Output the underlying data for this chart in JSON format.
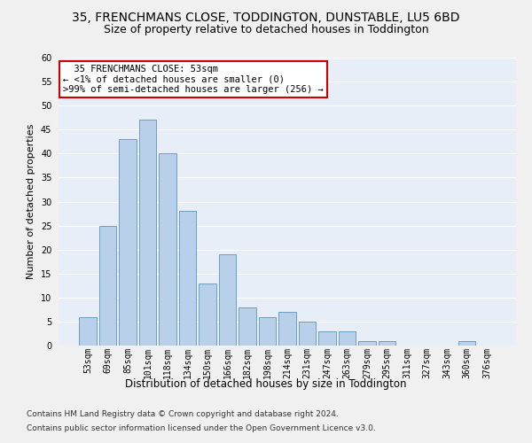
{
  "title": "35, FRENCHMANS CLOSE, TODDINGTON, DUNSTABLE, LU5 6BD",
  "subtitle": "Size of property relative to detached houses in Toddington",
  "xlabel": "Distribution of detached houses by size in Toddington",
  "ylabel": "Number of detached properties",
  "categories": [
    "53sqm",
    "69sqm",
    "85sqm",
    "101sqm",
    "118sqm",
    "134sqm",
    "150sqm",
    "166sqm",
    "182sqm",
    "198sqm",
    "214sqm",
    "231sqm",
    "247sqm",
    "263sqm",
    "279sqm",
    "295sqm",
    "311sqm",
    "327sqm",
    "343sqm",
    "360sqm",
    "376sqm"
  ],
  "values": [
    6,
    25,
    43,
    47,
    40,
    28,
    13,
    19,
    8,
    6,
    7,
    5,
    3,
    3,
    1,
    1,
    0,
    0,
    0,
    1,
    0
  ],
  "bar_color": "#b8d0ea",
  "bar_edge_color": "#6a9fc0",
  "annotation_text": "  35 FRENCHMANS CLOSE: 53sqm\n← <1% of detached houses are smaller (0)\n>99% of semi-detached houses are larger (256) →",
  "annotation_box_color": "#ffffff",
  "annotation_box_edge_color": "#cc0000",
  "ylim": [
    0,
    60
  ],
  "yticks": [
    0,
    5,
    10,
    15,
    20,
    25,
    30,
    35,
    40,
    45,
    50,
    55,
    60
  ],
  "background_color": "#e8eef8",
  "grid_color": "#ffffff",
  "footer1": "Contains HM Land Registry data © Crown copyright and database right 2024.",
  "footer2": "Contains public sector information licensed under the Open Government Licence v3.0.",
  "title_fontsize": 10,
  "subtitle_fontsize": 9,
  "xlabel_fontsize": 8.5,
  "ylabel_fontsize": 8,
  "tick_fontsize": 7,
  "footer_fontsize": 6.5
}
